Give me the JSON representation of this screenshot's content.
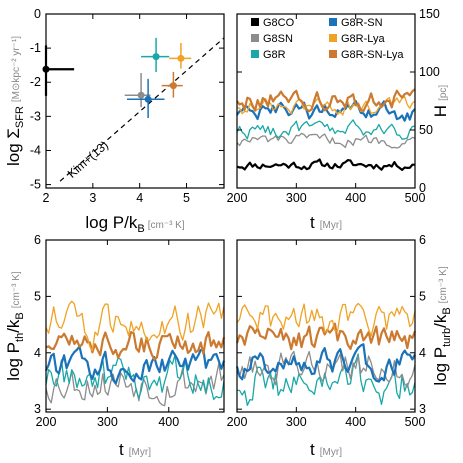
{
  "chart_data": [
    {
      "type": "scatter",
      "panel": "top-left",
      "xlabel": "log P/k",
      "xlabel_sub": "B",
      "xlabel_unit": "[cm⁻³ K]",
      "ylabel": "log Σ",
      "ylabel_sub": "SFR",
      "ylabel_unit": "[M⊙kpc⁻² yr⁻¹]",
      "xlim": [
        2,
        5.8
      ],
      "ylim": [
        -5.1,
        0
      ],
      "xticks": [
        "2",
        "3",
        "4",
        "5"
      ],
      "yticks": [
        "0",
        "-1",
        "-2",
        "-3",
        "-4",
        "-5"
      ],
      "reference_line": {
        "label": "Kim+(13)",
        "x": [
          2.3,
          5.8
        ],
        "y": [
          -4.9,
          -0.7
        ]
      },
      "points": [
        {
          "series": "G8CO",
          "x": 2.0,
          "y": -1.62,
          "xerr": [
            0.0,
            0.6
          ],
          "yerr": [
            0.78,
            0.7
          ]
        },
        {
          "series": "G8SN",
          "x": 4.03,
          "y": -2.38,
          "xerr": [
            0.35,
            0.2
          ],
          "yerr": [
            0.35,
            0.65
          ]
        },
        {
          "series": "G8R-SN",
          "x": 4.18,
          "y": -2.5,
          "xerr": [
            0.45,
            0.35
          ],
          "yerr": [
            0.55,
            0.6
          ]
        },
        {
          "series": "G8R",
          "x": 4.35,
          "y": -1.25,
          "xerr": [
            0.32,
            0.28
          ],
          "yerr": [
            0.45,
            0.55
          ]
        },
        {
          "series": "G8R-SN-Lya",
          "x": 4.72,
          "y": -2.1,
          "xerr": [
            0.25,
            0.2
          ],
          "yerr": [
            0.35,
            0.4
          ]
        },
        {
          "series": "G8R-Lya",
          "x": 4.88,
          "y": -1.3,
          "xerr": [
            0.25,
            0.22
          ],
          "yerr": [
            0.3,
            0.45
          ]
        }
      ]
    },
    {
      "type": "line",
      "panel": "top-right",
      "xlabel": "t",
      "xlabel_unit": "[Myr]",
      "ylabel": "H",
      "ylabel_unit": "[pc]",
      "xlim": [
        200,
        500
      ],
      "ylim": [
        0,
        150
      ],
      "xticks": [
        "200",
        "300",
        "400",
        "500"
      ],
      "yticks": [
        "0",
        "50",
        "100",
        "150"
      ],
      "legend": [
        {
          "name": "G8CO",
          "color": "#000000"
        },
        {
          "name": "G8R-SN",
          "color": "#1a73b8"
        },
        {
          "name": "G8SN",
          "color": "#8c8c8c"
        },
        {
          "name": "G8R-Lya",
          "color": "#f0a224"
        },
        {
          "name": "G8R",
          "color": "#1aa7a7"
        },
        {
          "name": "G8R-SN-Lya",
          "color": "#cc7a30"
        }
      ],
      "legend_position": "top",
      "series": [
        {
          "name": "G8CO",
          "baseline": 20,
          "amp": 4
        },
        {
          "name": "G8SN",
          "baseline": 41,
          "amp": 5
        },
        {
          "name": "G8R",
          "baseline": 50,
          "amp": 7
        },
        {
          "name": "G8R-SN",
          "baseline": 65,
          "amp": 8
        },
        {
          "name": "G8R-Lya",
          "baseline": 70,
          "amp": 7
        },
        {
          "name": "G8R-SN-Lya",
          "baseline": 76,
          "amp": 9
        }
      ]
    },
    {
      "type": "line",
      "panel": "bottom-left",
      "xlabel": "t",
      "xlabel_unit": "[Myr]",
      "ylabel": "log P",
      "ylabel_sub": "th",
      "ylabel_tail": "/k",
      "ylabel_sub2": "B",
      "ylabel_unit": "[cm⁻³ K]",
      "xlim": [
        200,
        490
      ],
      "ylim": [
        2.95,
        6
      ],
      "xticks": [
        "200",
        "300",
        "400"
      ],
      "yticks": [
        "3",
        "4",
        "5",
        "6"
      ],
      "series": [
        {
          "name": "G8SN",
          "baseline": 3.5,
          "amp": 0.35
        },
        {
          "name": "G8R",
          "baseline": 3.55,
          "amp": 0.35
        },
        {
          "name": "G8R-SN",
          "baseline": 3.75,
          "amp": 0.25
        },
        {
          "name": "G8R-SN-Lya",
          "baseline": 4.15,
          "amp": 0.25
        },
        {
          "name": "G8R-Lya",
          "baseline": 4.5,
          "amp": 0.35
        }
      ]
    },
    {
      "type": "line",
      "panel": "bottom-right",
      "xlabel": "t",
      "xlabel_unit": "[Myr]",
      "ylabel": "log P",
      "ylabel_sub": "turb",
      "ylabel_tail": "/k",
      "ylabel_sub2": "B",
      "ylabel_unit": "[cm⁻³ K]",
      "xlim": [
        200,
        500
      ],
      "ylim": [
        2.95,
        6
      ],
      "xticks": [
        "200",
        "300",
        "400",
        "500"
      ],
      "yticks": [
        "3",
        "4",
        "5",
        "6"
      ],
      "series": [
        {
          "name": "G8R",
          "baseline": 3.45,
          "amp": 0.4
        },
        {
          "name": "G8SN",
          "baseline": 3.75,
          "amp": 0.3
        },
        {
          "name": "G8R-SN",
          "baseline": 3.8,
          "amp": 0.25
        },
        {
          "name": "G8R-SN-Lya",
          "baseline": 4.2,
          "amp": 0.25
        },
        {
          "name": "G8R-Lya",
          "baseline": 4.55,
          "amp": 0.3
        }
      ]
    }
  ],
  "colors": {
    "G8CO": "#000000",
    "G8SN": "#8c8c8c",
    "G8R": "#1aa7a7",
    "G8R-SN": "#1a73b8",
    "G8R-Lya": "#f0a224",
    "G8R-SN-Lya": "#cc7a30"
  }
}
